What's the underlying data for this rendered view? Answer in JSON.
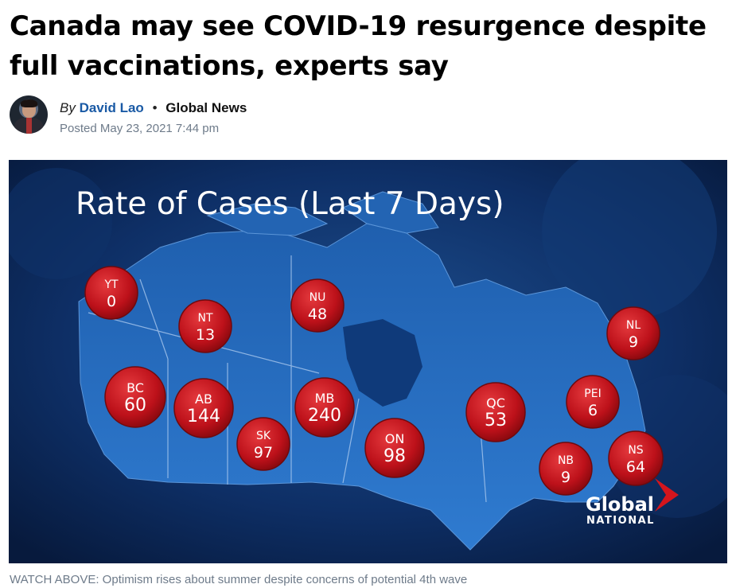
{
  "article": {
    "headline_line1": "Canada may see COVID-19 resurgence despite",
    "headline_line2": "full vaccinations, experts say",
    "byline": {
      "by": "By",
      "author": "David Lao",
      "separator": "•",
      "outlet": "Global News",
      "posted": "Posted May 23, 2021 7:44 pm"
    }
  },
  "video": {
    "title": "Rate of Cases (Last 7 Days)",
    "provinces": [
      {
        "code": "YT",
        "value": "0"
      },
      {
        "code": "NT",
        "value": "13"
      },
      {
        "code": "NU",
        "value": "48"
      },
      {
        "code": "NL",
        "value": "9"
      },
      {
        "code": "BC",
        "value": "60"
      },
      {
        "code": "AB",
        "value": "144"
      },
      {
        "code": "MB",
        "value": "240"
      },
      {
        "code": "SK",
        "value": "97"
      },
      {
        "code": "ON",
        "value": "98"
      },
      {
        "code": "QC",
        "value": "53"
      },
      {
        "code": "PEI",
        "value": "6"
      },
      {
        "code": "NB",
        "value": "9"
      },
      {
        "code": "NS",
        "value": "64"
      }
    ],
    "logo": {
      "line1": "Global",
      "line2": "NATIONAL"
    },
    "colors": {
      "background": "#0c2c5c",
      "map": "#2d6fc0",
      "bubble": "#c0141c"
    }
  },
  "caption": "WATCH ABOVE: Optimism rises about summer despite concerns of potential 4th wave"
}
